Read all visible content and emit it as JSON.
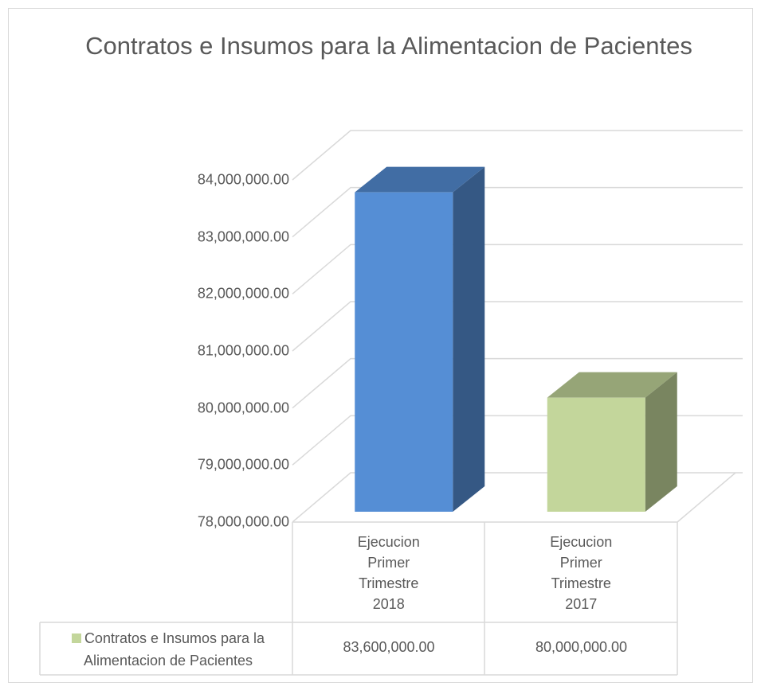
{
  "chart_data": {
    "type": "bar3d",
    "title": "Contratos e Insumos para la Alimentacion de Pacientes",
    "categories": [
      "Ejecucion Primer Trimestre 2018",
      "Ejecucion Primer Trimestre 2017"
    ],
    "series": [
      {
        "name": "Contratos e Insumos para la Alimentacion de Pacientes",
        "color": "#c3d69b",
        "point_colors": [
          "#558ed5",
          "#c3d69b"
        ],
        "values": [
          83600000,
          80000000
        ],
        "value_labels": [
          "83,600,000.00",
          "80,000,000.00"
        ]
      }
    ],
    "ylim": [
      78000000,
      84000000
    ],
    "yticks": [
      {
        "value": 78000000,
        "label": "78,000,000.00"
      },
      {
        "value": 79000000,
        "label": "79,000,000.00"
      },
      {
        "value": 80000000,
        "label": "80,000,000.00"
      },
      {
        "value": 81000000,
        "label": "81,000,000.00"
      },
      {
        "value": 82000000,
        "label": "82,000,000.00"
      },
      {
        "value": 83000000,
        "label": "83,000,000.00"
      },
      {
        "value": 84000000,
        "label": "84,000,000.00"
      }
    ],
    "grid": true,
    "legend": "data-table"
  }
}
